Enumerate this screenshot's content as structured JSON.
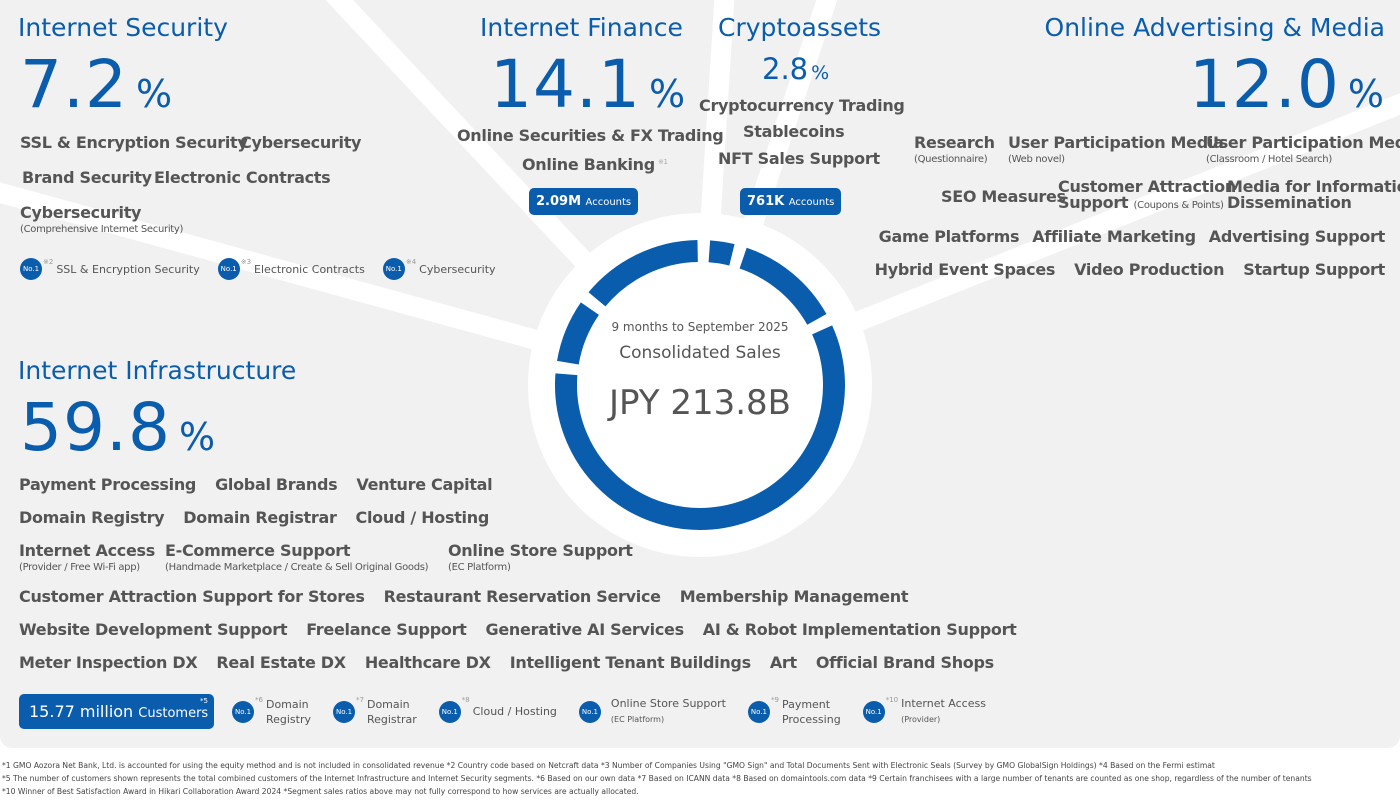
{
  "colors": {
    "brand": "#0a5cad",
    "panel": "#f1f1f1",
    "text": "#555555"
  },
  "security": {
    "title": "Internet Security",
    "pct": "7.2",
    "unit": "%",
    "items": [
      "SSL & Encryption Security",
      "Cybersecurity",
      "Brand Security",
      "Electronic Contracts"
    ],
    "item_main": "Cybersecurity",
    "item_sub": "(Comprehensive Internet Security)",
    "ranks": [
      {
        "badge": "No.1",
        "note": "※2",
        "label": "SSL & Encryption Security"
      },
      {
        "badge": "No.1",
        "note": "※3",
        "label": "Electronic Contracts"
      },
      {
        "badge": "No.1",
        "note": "※4",
        "label": "Cybersecurity"
      }
    ]
  },
  "finance": {
    "title": "Internet Finance",
    "pct": "14.1",
    "unit": "%",
    "items": [
      "Online Securities & FX Trading",
      "Online Banking"
    ],
    "banking_note": "※1",
    "badge_value": "2.09M",
    "badge_unit": "Accounts"
  },
  "crypto": {
    "title": "Cryptoassets",
    "pct": "2.8",
    "unit": "%",
    "items": [
      "Cryptocurrency Trading",
      "Stablecoins",
      "NFT Sales Support"
    ],
    "badge_value": "761K",
    "badge_unit": "Accounts"
  },
  "advertising": {
    "title": "Online Advertising & Media",
    "pct": "12.0",
    "unit": "%",
    "row1": [
      {
        "label": "Research",
        "sub": "(Questionnaire)"
      },
      {
        "label": "User Participation Media",
        "sub": "(Web novel)"
      },
      {
        "label": "User Participation Media",
        "sub": "(Classroom / Hotel Search)"
      }
    ],
    "seo": "SEO Measures",
    "cas1": "Customer Attraction",
    "cas2": "Support",
    "cas_sub": "(Coupons & Points)",
    "media1": "Media for Information",
    "media2": "Dissemination",
    "row3": [
      "Game Platforms",
      "Affiliate Marketing",
      "Advertising Support"
    ],
    "row4": [
      "Hybrid Event Spaces",
      "Video Production",
      "Startup Support"
    ]
  },
  "infra": {
    "title": "Internet Infrastructure",
    "pct": "59.8",
    "unit": "%",
    "row1": [
      "Payment Processing",
      "Global Brands",
      "Venture Capital"
    ],
    "row2": [
      "Domain Registry",
      "Domain Registrar",
      "Cloud / Hosting"
    ],
    "row3": [
      {
        "label": "Internet Access",
        "sub": "(Provider / Free Wi-Fi app)"
      },
      {
        "label": "E-Commerce Support",
        "sub": "(Handmade Marketplace / Create & Sell Original Goods)"
      },
      {
        "label": "Online Store Support",
        "sub": "(EC Platform)"
      }
    ],
    "row4": [
      "Customer Attraction Support for Stores",
      "Restaurant Reservation Service",
      "Membership Management"
    ],
    "row5": [
      "Website Development Support",
      "Freelance Support",
      "Generative AI Services",
      "AI & Robot Implementation Support"
    ],
    "row6": [
      "Meter Inspection DX",
      "Real Estate DX",
      "Healthcare DX",
      "Intelligent Tenant Buildings",
      "Art",
      "Official Brand Shops"
    ],
    "customers_value": "15.77 million",
    "customers_unit": "Customers",
    "customers_note": "*5",
    "ranks": [
      {
        "badge": "No.1",
        "note": "*6",
        "l1": "Domain",
        "l2": "Registry"
      },
      {
        "badge": "No.1",
        "note": "*7",
        "l1": "Domain",
        "l2": "Registrar"
      },
      {
        "badge": "No.1",
        "note": "*8",
        "l1": "Cloud / Hosting",
        "l2": ""
      },
      {
        "badge": "No.1",
        "note": "",
        "l1": "Online Store Support",
        "l2": "(EC Platform)"
      },
      {
        "badge": "No.1",
        "note": "*9",
        "l1": "Payment",
        "l2": "Processing"
      },
      {
        "badge": "No.1",
        "note": "*10",
        "l1": "Internet Access",
        "l2": "(Provider)"
      }
    ]
  },
  "center": {
    "period": "9 months to September 2025",
    "label": "Consolidated Sales",
    "value": "JPY 213.8B"
  },
  "chart_data": {
    "type": "pie",
    "title": "Consolidated Sales",
    "categories": [
      "Cryptoassets",
      "Online Advertising & Media",
      "Internet Infrastructure",
      "Internet Security",
      "Internet Finance"
    ],
    "values": [
      2.8,
      12.0,
      59.8,
      7.2,
      14.1
    ]
  },
  "footnotes": [
    "*1 GMO Aozora Net Bank, Ltd. is accounted for using the equity method and is not included in consolidated revenue    *2 Country code based on Netcraft data    *3 Number of Companies Using \"GMO Sign\" and Total Documents Sent with Electronic Seals (Survey by GMO GlobalSign Holdings)    *4 Based on the Fermi estimat",
    "*5 The number of customers shown represents the total combined customers of the Internet Infrastructure and Internet Security segments.    *6 Based on our own data    *7 Based on ICANN data    *8 Based on domaintools.com data    *9  Certain franchisees with a large number of tenants are counted as one shop, regardless of the number of tenants",
    "*10 Winner of Best Satisfaction Award in Hikari Collaboration Award 2024    *Segment sales ratios above may not fully correspond to how services are actually allocated."
  ]
}
